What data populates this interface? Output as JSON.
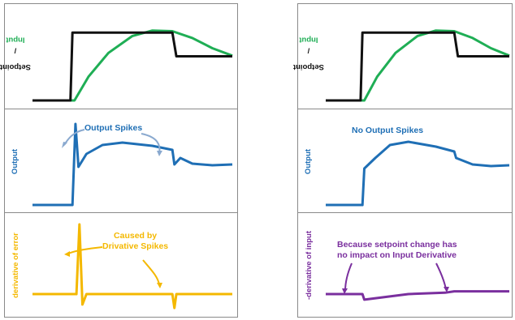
{
  "colors": {
    "setpoint": "#111111",
    "input": "#1fae55",
    "output": "#1f6fb5",
    "error_derivative": "#f4b800",
    "input_derivative": "#7a2f9e",
    "border": "#8a8a8a"
  },
  "left_panel": {
    "top": {
      "ylabel_setpoint": "Setpoint",
      "ylabel_sep": " / ",
      "ylabel_input": "Input"
    },
    "middle": {
      "ylabel": "Output",
      "annotation": "Output Spikes"
    },
    "bottom": {
      "ylabel": "derivative of error",
      "annotation_line1": "Caused by",
      "annotation_line2": "Drivative Spikes"
    }
  },
  "right_panel": {
    "top": {
      "ylabel_setpoint": "Setpoint",
      "ylabel_sep": " / ",
      "ylabel_input": "Input"
    },
    "middle": {
      "ylabel": "Output",
      "annotation": "No Output Spikes"
    },
    "bottom": {
      "ylabel": "-derivative of input",
      "annotation_line1": "Because setpoint change has",
      "annotation_line2": "no impact on Input Derivative"
    }
  },
  "chart_data": [
    {
      "type": "line",
      "panel": "left-top",
      "series": [
        {
          "name": "Setpoint",
          "values": [
            [
              0,
              0
            ],
            [
              0.19,
              0
            ],
            [
              0.2,
              1
            ],
            [
              0.7,
              1
            ],
            [
              0.72,
              0.65
            ],
            [
              1,
              0.65
            ]
          ]
        },
        {
          "name": "Input",
          "values": [
            [
              0,
              0
            ],
            [
              0.21,
              0
            ],
            [
              0.28,
              0.35
            ],
            [
              0.38,
              0.7
            ],
            [
              0.5,
              0.95
            ],
            [
              0.6,
              1.03
            ],
            [
              0.7,
              1.02
            ],
            [
              0.8,
              0.92
            ],
            [
              0.9,
              0.77
            ],
            [
              1,
              0.66
            ]
          ]
        }
      ]
    },
    {
      "type": "line",
      "panel": "left-middle",
      "series": [
        {
          "values": [
            [
              0,
              0
            ],
            [
              0.2,
              0
            ],
            [
              0.215,
              1.0
            ],
            [
              0.23,
              0.47
            ],
            [
              0.27,
              0.63
            ],
            [
              0.35,
              0.74
            ],
            [
              0.45,
              0.77
            ],
            [
              0.6,
              0.73
            ],
            [
              0.7,
              0.68
            ],
            [
              0.71,
              0.5
            ],
            [
              0.74,
              0.58
            ],
            [
              0.8,
              0.51
            ],
            [
              0.9,
              0.49
            ],
            [
              1,
              0.5
            ]
          ]
        }
      ]
    },
    {
      "type": "line",
      "panel": "left-bottom",
      "series": [
        {
          "values": [
            [
              0,
              0
            ],
            [
              0.22,
              0
            ],
            [
              0.235,
              1.0
            ],
            [
              0.25,
              -0.15
            ],
            [
              0.27,
              0
            ],
            [
              0.7,
              0
            ],
            [
              0.71,
              -0.2
            ],
            [
              0.72,
              0
            ],
            [
              1,
              0
            ]
          ]
        }
      ]
    },
    {
      "type": "line",
      "panel": "right-top",
      "series": [
        {
          "name": "Setpoint",
          "values": [
            [
              0,
              0
            ],
            [
              0.19,
              0
            ],
            [
              0.2,
              1
            ],
            [
              0.7,
              1
            ],
            [
              0.72,
              0.65
            ],
            [
              1,
              0.65
            ]
          ]
        },
        {
          "name": "Input",
          "values": [
            [
              0,
              0
            ],
            [
              0.21,
              0
            ],
            [
              0.28,
              0.35
            ],
            [
              0.38,
              0.7
            ],
            [
              0.5,
              0.95
            ],
            [
              0.6,
              1.03
            ],
            [
              0.7,
              1.02
            ],
            [
              0.8,
              0.92
            ],
            [
              0.9,
              0.77
            ],
            [
              1,
              0.66
            ]
          ]
        }
      ]
    },
    {
      "type": "line",
      "panel": "right-middle",
      "series": [
        {
          "values": [
            [
              0,
              0
            ],
            [
              0.2,
              0
            ],
            [
              0.21,
              0.45
            ],
            [
              0.27,
              0.58
            ],
            [
              0.35,
              0.74
            ],
            [
              0.45,
              0.78
            ],
            [
              0.6,
              0.72
            ],
            [
              0.7,
              0.66
            ],
            [
              0.71,
              0.58
            ],
            [
              0.8,
              0.5
            ],
            [
              0.9,
              0.48
            ],
            [
              1,
              0.49
            ]
          ]
        }
      ]
    },
    {
      "type": "line",
      "panel": "right-bottom",
      "series": [
        {
          "values": [
            [
              0,
              0
            ],
            [
              0.2,
              0
            ],
            [
              0.21,
              -0.08
            ],
            [
              0.45,
              0
            ],
            [
              0.65,
              0.02
            ],
            [
              0.7,
              0.04
            ],
            [
              1,
              0.04
            ]
          ]
        }
      ]
    }
  ]
}
